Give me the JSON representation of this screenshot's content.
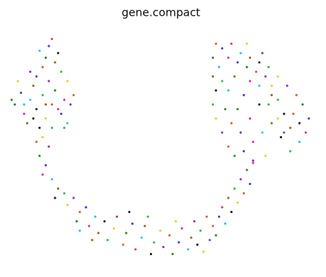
{
  "chart_data": {
    "type": "scatter",
    "title": "gene.compact",
    "x": [
      3,
      5,
      6,
      8,
      9,
      10,
      12,
      13,
      14,
      15,
      16,
      18,
      19,
      20,
      7,
      11,
      15,
      4,
      8,
      12,
      13,
      14,
      15,
      11,
      16,
      17,
      18,
      20,
      21,
      22,
      2,
      10,
      17,
      6,
      13,
      9,
      19,
      12,
      14,
      10,
      11,
      13,
      12,
      15,
      17,
      16,
      19,
      20,
      22,
      24,
      23,
      26,
      27,
      29,
      30,
      32,
      33,
      35,
      36,
      38,
      39,
      41,
      42,
      44,
      45,
      47,
      48,
      50,
      51,
      53,
      54,
      56,
      57,
      59,
      60,
      62,
      63,
      64,
      66,
      67,
      68,
      69,
      70,
      71,
      72,
      73,
      74,
      75,
      76,
      77,
      78,
      79,
      80,
      24,
      28,
      40,
      46,
      55,
      61,
      65,
      67,
      70,
      73,
      76,
      79,
      82,
      85,
      88,
      91,
      94,
      96,
      98,
      97,
      95,
      92,
      90,
      88,
      86,
      84,
      81,
      78,
      75,
      72,
      69,
      67,
      68,
      67,
      68,
      70,
      72,
      74,
      77,
      80,
      83,
      86,
      89,
      92,
      84,
      80,
      73,
      75,
      77,
      79,
      72,
      74,
      82,
      85,
      88,
      90,
      93,
      71,
      76,
      79,
      82,
      86,
      95,
      70,
      78,
      83,
      68
    ],
    "values": [
      70,
      75,
      66,
      72,
      78,
      68,
      74,
      64,
      80,
      70,
      76,
      66,
      72,
      62,
      62,
      60,
      60,
      80,
      84,
      86,
      90,
      95,
      98,
      93,
      88,
      92,
      84,
      80,
      70,
      74,
      72,
      82,
      68,
      70,
      70,
      64,
      60,
      56,
      52,
      54,
      48,
      44,
      40,
      38,
      34,
      30,
      32,
      27,
      30,
      24,
      20,
      26,
      18,
      22,
      15,
      20,
      12,
      17,
      22,
      10,
      15,
      19,
      8,
      13,
      18,
      6,
      11,
      16,
      9,
      14,
      6,
      11,
      17,
      8,
      13,
      10,
      16,
      7,
      12,
      18,
      14,
      22,
      26,
      19,
      30,
      24,
      34,
      28,
      38,
      32,
      42,
      36,
      45,
      16,
      12,
      24,
      22,
      20,
      20,
      22,
      90,
      94,
      96,
      92,
      90,
      88,
      86,
      82,
      78,
      74,
      70,
      64,
      58,
      54,
      60,
      66,
      72,
      78,
      82,
      84,
      86,
      88,
      90,
      86,
      82,
      76,
      70,
      64,
      58,
      52,
      48,
      50,
      54,
      58,
      62,
      56,
      50,
      48,
      46,
      62,
      68,
      74,
      80,
      76,
      82,
      70,
      70,
      64,
      58,
      66,
      68,
      58,
      64,
      78,
      74,
      62,
      80,
      96,
      92,
      96
    ],
    "palette": [
      "#1f7a1f",
      "#3b2bd9",
      "#e01e8c",
      "#19c3d6",
      "#8a5a12",
      "#111111",
      "#29b34a",
      "#d9d21b",
      "#7b2bb3",
      "#d9532b"
    ],
    "xlim": [
      0,
      100
    ],
    "ylim": [
      0,
      100
    ]
  }
}
